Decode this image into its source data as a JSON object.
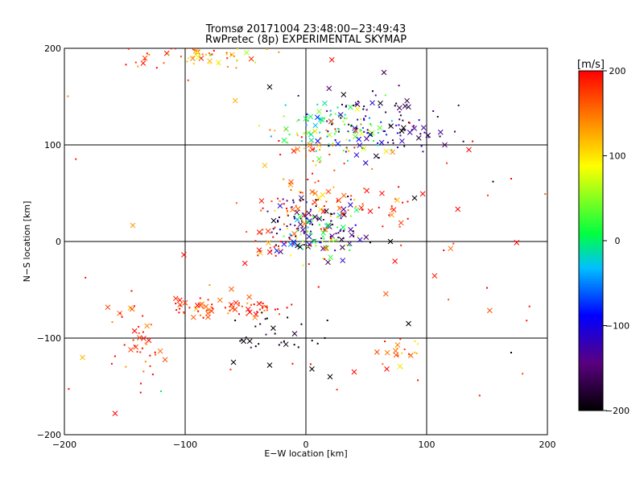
{
  "chart_data": {
    "type": "scatter",
    "title": "Tromsø 20171004 23:48:00−23:49:43",
    "subtitle": "RwPretec (8p) EXPERIMENTAL SKYMAP",
    "xlabel": "E−W location [km]",
    "ylabel": "N−S location [km]",
    "xlim": [
      -200,
      200
    ],
    "ylim": [
      -200,
      200
    ],
    "xticks": [
      -200,
      -100,
      0,
      100,
      200
    ],
    "yticks": [
      -200,
      -100,
      0,
      100,
      200
    ],
    "xtick_labels": [
      "−200",
      "−100",
      "0",
      "100",
      "200"
    ],
    "ytick_labels": [
      "200",
      "100",
      "0",
      "−100",
      "−200"
    ],
    "grid": true,
    "marker_legend": "small dots and × crosses (color = velocity)",
    "colorbar": {
      "label": "[m/s]",
      "min": -200,
      "max": 200,
      "ticks": [
        200,
        100,
        0,
        -100,
        -200
      ],
      "tick_labels": [
        "200",
        "100",
        "0",
        "−100",
        "−200"
      ],
      "colors": [
        "#000000",
        "#5a0080",
        "#0000ff",
        "#00c0ff",
        "#00ff40",
        "#ffff00",
        "#ff8000",
        "#ff0000"
      ]
    },
    "clusters": [
      {
        "region": "top-left",
        "x": -110,
        "y": 190,
        "spread_x": 25,
        "spread_y": 8,
        "v": 180,
        "n": 35
      },
      {
        "region": "top-left-yellow",
        "x": -70,
        "y": 190,
        "spread_x": 20,
        "spread_y": 8,
        "v": 110,
        "n": 25
      },
      {
        "region": "north-main",
        "x": 20,
        "y": 120,
        "spread_x": 25,
        "spread_y": 15,
        "v": 20,
        "n": 80
      },
      {
        "region": "north-east",
        "x": 70,
        "y": 125,
        "spread_x": 30,
        "spread_y": 20,
        "v": -160,
        "n": 90
      },
      {
        "region": "north-east-blue",
        "x": 45,
        "y": 115,
        "spread_x": 20,
        "spread_y": 12,
        "v": -90,
        "n": 30
      },
      {
        "region": "upper-center",
        "x": 10,
        "y": 95,
        "spread_x": 25,
        "spread_y": 12,
        "v": 150,
        "n": 40
      },
      {
        "region": "mid-center",
        "x": 5,
        "y": 45,
        "spread_x": 20,
        "spread_y": 12,
        "v": 160,
        "n": 50
      },
      {
        "region": "center",
        "x": 5,
        "y": 15,
        "spread_x": 20,
        "spread_y": 15,
        "v": -150,
        "n": 120
      },
      {
        "region": "center-green",
        "x": 10,
        "y": 5,
        "spread_x": 15,
        "spread_y": 12,
        "v": 20,
        "n": 50
      },
      {
        "region": "center-red",
        "x": -15,
        "y": 0,
        "spread_x": 20,
        "spread_y": 15,
        "v": 180,
        "n": 40
      },
      {
        "region": "east-mid",
        "x": 70,
        "y": 35,
        "spread_x": 15,
        "spread_y": 10,
        "v": 190,
        "n": 20
      },
      {
        "region": "west-arc",
        "x": -80,
        "y": -68,
        "spread_x": 15,
        "spread_y": 5,
        "v": 190,
        "n": 45
      },
      {
        "region": "mid-arc",
        "x": -40,
        "y": -68,
        "spread_x": 10,
        "spread_y": 5,
        "v": 190,
        "n": 30
      },
      {
        "region": "south-west",
        "x": -140,
        "y": -105,
        "spread_x": 10,
        "spread_y": 20,
        "v": 180,
        "n": 40
      },
      {
        "region": "south-center",
        "x": -20,
        "y": -95,
        "spread_x": 20,
        "spread_y": 10,
        "v": -200,
        "n": 30
      },
      {
        "region": "south-east",
        "x": 75,
        "y": -115,
        "spread_x": 10,
        "spread_y": 10,
        "v": 130,
        "n": 20
      },
      {
        "region": "scatter",
        "x": 0,
        "y": 0,
        "spread_x": 110,
        "spread_y": 110,
        "v": 190,
        "n": 60
      }
    ],
    "axis_margin_frac": 0.53,
    "sparse_points": [
      {
        "x": -185,
        "y": -120,
        "v": 120,
        "m": "x"
      },
      {
        "x": -158,
        "y": -178,
        "v": 200,
        "m": "x"
      },
      {
        "x": -120,
        "y": -155,
        "v": 0,
        "m": "dot"
      },
      {
        "x": 170,
        "y": -115,
        "v": -200,
        "m": "dot"
      },
      {
        "x": 155,
        "y": 62,
        "v": -200,
        "m": "dot"
      },
      {
        "x": 170,
        "y": 65,
        "v": 200,
        "m": "dot"
      },
      {
        "x": 150,
        "y": -48,
        "v": 200,
        "m": "dot"
      },
      {
        "x": 135,
        "y": 95,
        "v": 200,
        "m": "x"
      },
      {
        "x": 115,
        "y": 100,
        "v": -150,
        "m": "x"
      },
      {
        "x": -30,
        "y": 160,
        "v": -200,
        "m": "x"
      },
      {
        "x": -60,
        "y": -125,
        "v": -200,
        "m": "x"
      },
      {
        "x": -30,
        "y": -128,
        "v": -200,
        "m": "x"
      },
      {
        "x": 5,
        "y": -132,
        "v": -200,
        "m": "x"
      },
      {
        "x": 20,
        "y": -140,
        "v": -200,
        "m": "x"
      },
      {
        "x": 40,
        "y": -135,
        "v": 200,
        "m": "x"
      },
      {
        "x": 67,
        "y": -132,
        "v": 200,
        "m": "x"
      },
      {
        "x": 85,
        "y": -85,
        "v": -200,
        "m": "x"
      },
      {
        "x": 90,
        "y": 45,
        "v": -200,
        "m": "x"
      },
      {
        "x": 70,
        "y": 0,
        "v": -200,
        "m": "x"
      }
    ]
  }
}
